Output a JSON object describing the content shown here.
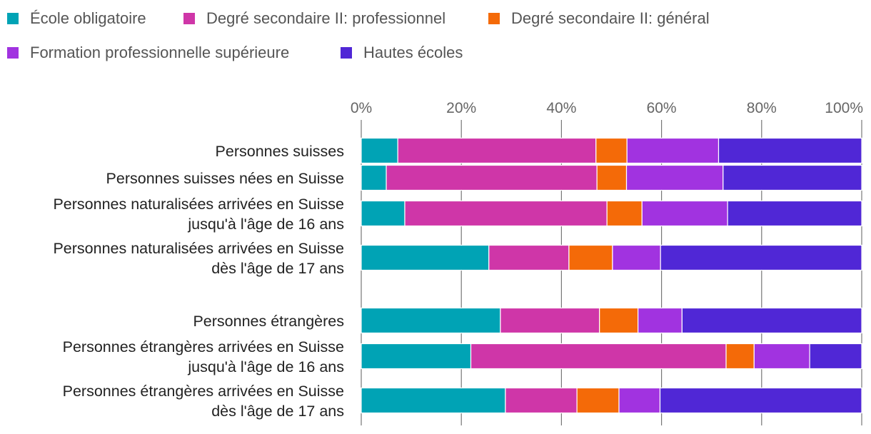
{
  "chart_data": {
    "type": "bar",
    "orientation": "horizontal",
    "stacked": true,
    "normalized": true,
    "title": "",
    "xlabel": "",
    "ylabel": "",
    "xlim": [
      0,
      100
    ],
    "x_ticks": [
      "0%",
      "20%",
      "40%",
      "60%",
      "80%",
      "100%"
    ],
    "grid": true,
    "legend_position": "top-left",
    "categories": [
      [
        "Personnes suisses"
      ],
      [
        "Personnes suisses nées en Suisse"
      ],
      [
        "Personnes naturalisées arrivées en Suisse",
        "jusqu'à l'âge de 16 ans"
      ],
      [
        "Personnes naturalisées arrivées en Suisse",
        "dès l'âge de 17 ans"
      ],
      [
        "Personnes étrangères"
      ],
      [
        "Personnes étrangères arrivées en Suisse",
        "jusqu'à l'âge de 16 ans"
      ],
      [
        "Personnes étrangères arrivées en Suisse",
        "dès l'âge de 17 ans"
      ]
    ],
    "series": [
      {
        "name": "École obligatoire",
        "color": "#00a3b5",
        "values": [
          7.3,
          5.0,
          8.7,
          25.5,
          27.8,
          21.9,
          28.8
        ]
      },
      {
        "name": "Degré secondaire II: professionnel",
        "color": "#cf36a8",
        "values": [
          39.6,
          42.1,
          40.4,
          16.0,
          19.8,
          51.0,
          14.3
        ]
      },
      {
        "name": "Degré secondaire II: général",
        "color": "#f46a08",
        "values": [
          6.2,
          5.9,
          7.0,
          8.7,
          7.7,
          5.6,
          8.4
        ]
      },
      {
        "name": "Formation professionnelle supérieure",
        "color": "#a133e0",
        "values": [
          18.3,
          19.3,
          17.1,
          9.6,
          8.8,
          11.1,
          8.2
        ]
      },
      {
        "name": "Hautes écoles",
        "color": "#5027d6",
        "values": [
          28.6,
          27.7,
          26.8,
          40.2,
          35.9,
          10.4,
          40.3
        ]
      }
    ]
  }
}
